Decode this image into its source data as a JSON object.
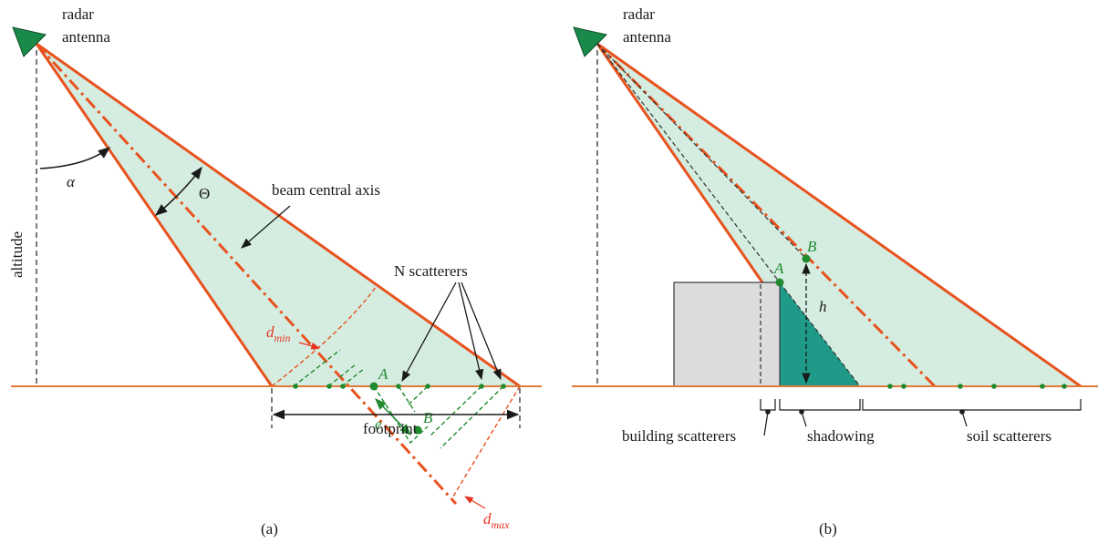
{
  "colors": {
    "beam_fill": "#d5ede0",
    "beam_edge": "#e8521e",
    "ground": "#e07a3a",
    "antenna": "#1a8a4a",
    "scatterer": "#1f8a2e",
    "shadow_fill": "#1f9a88",
    "building_fill": "#dcdcdc"
  },
  "panel_a": {
    "caption": "(a)",
    "radar_label_1": "radar",
    "radar_label_2": "antenna",
    "altitude_label": "altitude",
    "alpha_label": "α",
    "theta_label": "Θ",
    "axis_label": "beam central axis",
    "scatterers_label": "N scatterers",
    "dmin_main": "d",
    "dmin_sub": "min",
    "dmax_main": "d",
    "dmax_sub": "max",
    "point_a": "A",
    "point_b": "B",
    "e_label": "e",
    "footprint_label": "footprint"
  },
  "panel_b": {
    "caption": "(b)",
    "radar_label_1": "radar",
    "radar_label_2": "antenna",
    "point_a": "A",
    "point_b": "B",
    "h_label": "h",
    "building_label": "building scatterers",
    "shadowing_label": "shadowing",
    "soil_label": "soil scatterers"
  }
}
